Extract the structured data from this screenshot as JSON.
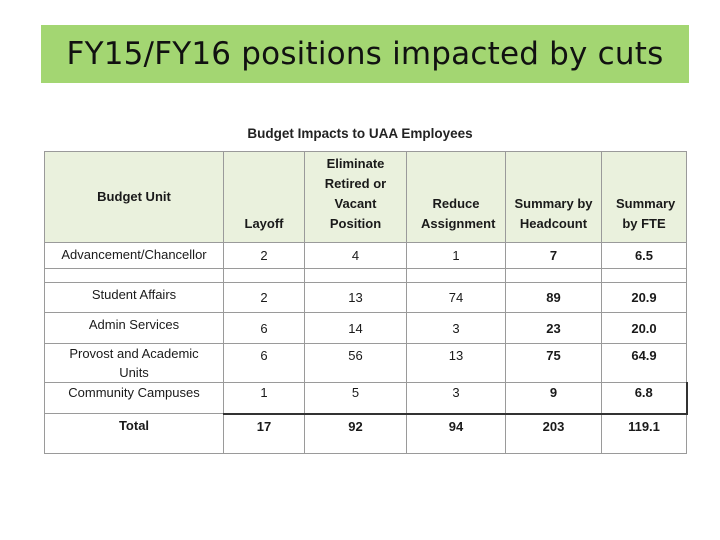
{
  "slide": {
    "title": "FY15/FY16 positions impacted by cuts"
  },
  "table": {
    "caption": "Budget Impacts to UAA Employees",
    "headers": [
      "Budget Unit",
      "Layoff",
      "Eliminate Retired or Vacant Position",
      "Reduce Assignment",
      "Summary by Headcount",
      "Summary by FTE"
    ],
    "rows": [
      [
        "Advancement/Chancellor",
        "2",
        "4",
        "1",
        "7",
        "6.5"
      ],
      [
        "Student Affairs",
        "2",
        "13",
        "74",
        "89",
        "20.9"
      ],
      [
        "Admin Services",
        "6",
        "14",
        "3",
        "23",
        "20.0"
      ],
      [
        "Provost and Academic Units",
        "6",
        "56",
        "13",
        "75",
        "64.9"
      ],
      [
        "Community Campuses",
        "1",
        "5",
        "3",
        "9",
        "6.8"
      ]
    ],
    "total": [
      "Total",
      "17",
      "92",
      "94",
      "203",
      "119.1"
    ]
  },
  "colors": {
    "banner": "#a3d672",
    "header_fill": "#eaf1dd",
    "border": "#9a9a9a"
  }
}
